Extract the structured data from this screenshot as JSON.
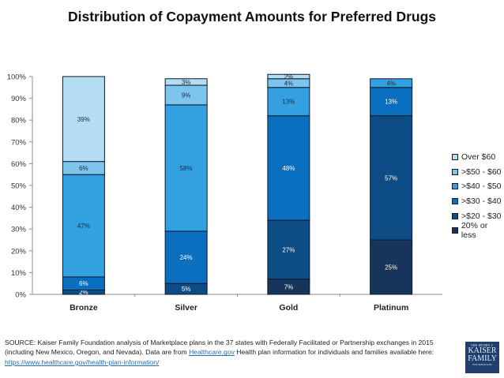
{
  "chart_data": {
    "type": "bar",
    "stacked": true,
    "percent_stacked": true,
    "title": "Distribution of Copayment Amounts for Preferred Drugs",
    "xlabel": "",
    "ylabel": "",
    "ylim": [
      0,
      100
    ],
    "yticks": [
      "0%",
      "10%",
      "20%",
      "30%",
      "40%",
      "50%",
      "60%",
      "70%",
      "80%",
      "90%",
      "100%"
    ],
    "categories": [
      "Bronze",
      "Silver",
      "Gold",
      "Platinum"
    ],
    "legend_position": "right",
    "series": [
      {
        "name": "20% or less",
        "color": "#17345a",
        "label_color": "#ffffff",
        "values": [
          0,
          0,
          7,
          25
        ]
      },
      {
        "name": ">$20 - $30",
        "color": "#0d4c85",
        "label_color": "#ffffff",
        "values": [
          2,
          5,
          27,
          57
        ]
      },
      {
        "name": ">$30 - $40",
        "color": "#0a6fbe",
        "label_color": "#ffffff",
        "values": [
          6,
          24,
          48,
          13
        ]
      },
      {
        "name": ">$40 - $50",
        "color": "#33a0e2",
        "label_color": "#1b2b3f",
        "values": [
          47,
          58,
          13,
          4
        ]
      },
      {
        "name": ">$50 - $60",
        "color": "#7ec5ee",
        "label_color": "#1b2b3f",
        "values": [
          6,
          9,
          4,
          0
        ]
      },
      {
        "name": "Over $60",
        "color": "#b4dcf3",
        "label_color": "#1b2b3f",
        "values": [
          39,
          3,
          2,
          0
        ]
      }
    ],
    "grid": false
  },
  "legend": [
    {
      "label": "Over $60",
      "color": "#b4dcf3"
    },
    {
      "label": ">$50 - $60",
      "color": "#7ec5ee"
    },
    {
      "label": ">$40 - $50",
      "color": "#33a0e2"
    },
    {
      "label": ">$30 - $40",
      "color": "#0a6fbe"
    },
    {
      "label": ">$20 - $30",
      "color": "#0d4c85"
    },
    {
      "label": "20% or less",
      "color": "#17345a"
    }
  ],
  "source": {
    "prefix": "SOURCE: Kaiser Family Foundation analysis of Marketplace plans in the 37 states with Federally Facilitated or Partnership exchanges in 2015 (including New Mexico, Oregon, and Nevada). Data are from ",
    "link1": "Healthcare.gov",
    "middle": " Health plan information for individuals and families available here: ",
    "link2": "https://www.healthcare.gov/health-plan-information/"
  },
  "logo": {
    "line1": "THE HENRY J.",
    "line2": "KAISER",
    "line3": "FAMILY",
    "line4": "FOUNDATION"
  }
}
